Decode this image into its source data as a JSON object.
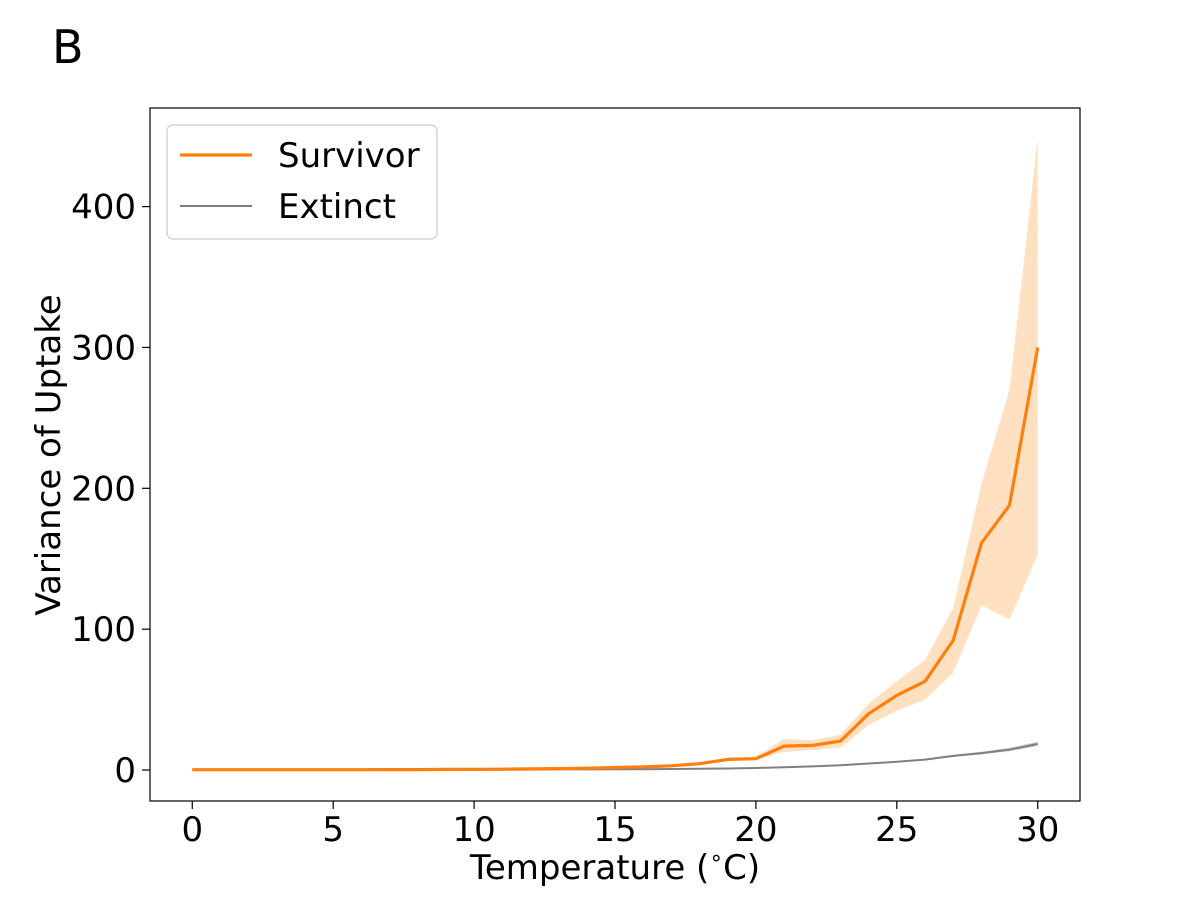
{
  "panel_label": "B",
  "chart_data": {
    "type": "line",
    "title": "",
    "xlabel": "Temperature ($^\\circ$C)",
    "xlabel_parts": {
      "before": "Temperature (",
      "sup": "∘",
      "after": "C)"
    },
    "ylabel": "Variance of Uptake",
    "xlim": [
      -1.5,
      31.5
    ],
    "ylim": [
      -22,
      470
    ],
    "xticks": [
      0,
      5,
      10,
      15,
      20,
      25,
      30
    ],
    "yticks": [
      0,
      100,
      200,
      300,
      400
    ],
    "grid": false,
    "legend_position": "top-left",
    "x": [
      0,
      1,
      2,
      3,
      4,
      5,
      6,
      7,
      8,
      9,
      10,
      11,
      12,
      13,
      14,
      15,
      16,
      17,
      18,
      19,
      20,
      21,
      22,
      23,
      24,
      25,
      26,
      27,
      28,
      29,
      30
    ],
    "series": [
      {
        "name": "Survivor",
        "color": "#ff7f0e",
        "band_color": "#ffd7ad",
        "values": [
          0.2,
          0.2,
          0.2,
          0.2,
          0.2,
          0.2,
          0.2,
          0.3,
          0.3,
          0.4,
          0.5,
          0.6,
          0.8,
          1.0,
          1.3,
          1.8,
          2.2,
          3.0,
          4.5,
          7.5,
          8.0,
          17,
          17.5,
          20.5,
          40,
          53,
          63,
          92,
          161,
          188,
          300
        ],
        "lower": [
          0.1,
          0.1,
          0.1,
          0.1,
          0.1,
          0.1,
          0.1,
          0.2,
          0.2,
          0.3,
          0.4,
          0.5,
          0.6,
          0.8,
          1.0,
          1.4,
          1.8,
          2.4,
          3.6,
          6.5,
          7.0,
          13,
          14,
          16,
          32,
          42,
          50,
          69,
          117,
          107,
          153
        ],
        "upper": [
          0.3,
          0.3,
          0.3,
          0.3,
          0.3,
          0.3,
          0.3,
          0.4,
          0.4,
          0.5,
          0.6,
          0.7,
          1.0,
          1.2,
          1.6,
          2.2,
          2.7,
          3.6,
          5.4,
          8.5,
          9.5,
          22,
          21,
          25,
          47,
          63,
          78,
          115,
          203,
          270,
          449
        ]
      },
      {
        "name": "Extinct",
        "color": "#808080",
        "band_color": "#c4c4c4",
        "values": [
          0.1,
          0.1,
          0.1,
          0.1,
          0.1,
          0.1,
          0.1,
          0.1,
          0.2,
          0.2,
          0.2,
          0.3,
          0.3,
          0.4,
          0.4,
          0.5,
          0.6,
          0.7,
          0.9,
          1.1,
          1.4,
          2.0,
          2.6,
          3.4,
          4.6,
          5.8,
          7.4,
          10.0,
          12.0,
          14.5,
          18.5
        ],
        "lower": [
          0.1,
          0.1,
          0.1,
          0.1,
          0.1,
          0.1,
          0.1,
          0.1,
          0.1,
          0.1,
          0.2,
          0.2,
          0.2,
          0.3,
          0.3,
          0.4,
          0.5,
          0.6,
          0.8,
          1.0,
          1.3,
          1.8,
          2.4,
          3.1,
          4.2,
          5.4,
          6.9,
          9.3,
          11.0,
          13.3,
          17.0
        ],
        "upper": [
          0.1,
          0.1,
          0.1,
          0.2,
          0.2,
          0.2,
          0.2,
          0.2,
          0.2,
          0.2,
          0.3,
          0.3,
          0.4,
          0.4,
          0.5,
          0.6,
          0.7,
          0.8,
          1.0,
          1.2,
          1.5,
          2.2,
          2.8,
          3.7,
          5.0,
          6.3,
          8.0,
          10.8,
          13.0,
          15.8,
          20.0
        ]
      }
    ]
  }
}
